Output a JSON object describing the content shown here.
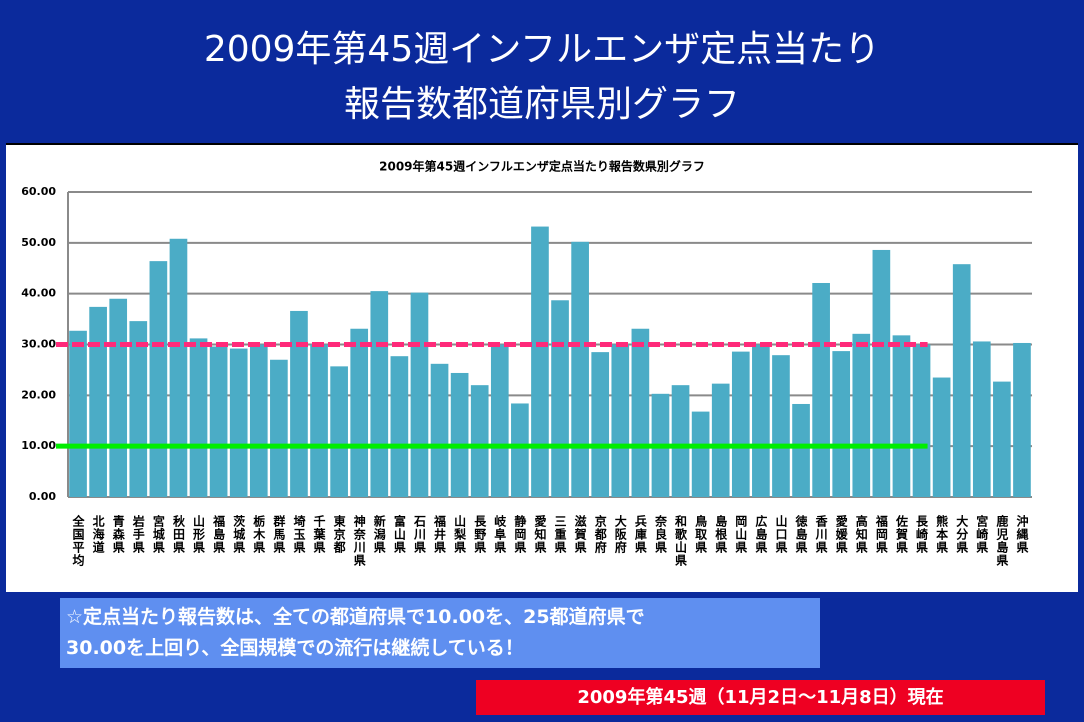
{
  "slide": {
    "title_lines": [
      "2009年第45週インフルエンザ定点当たり",
      "報告数都道府県別グラフ"
    ],
    "note_lines": [
      "☆定点当たり報告数は、全ての都道府県で10.00を、25都道府県で",
      "30.00を上回り、全国規模での流行は継続している！"
    ],
    "footer": "2009年第45週（11月2日～11月8日）現在"
  },
  "chart_data": {
    "type": "bar",
    "title": "2009年第45週インフルエンザ定点当たり報告数県別グラフ",
    "categories": [
      "全国平均",
      "北海道",
      "青森県",
      "岩手県",
      "宮城県",
      "秋田県",
      "山形県",
      "福島県",
      "茨城県",
      "栃木県",
      "群馬県",
      "埼玉県",
      "千葉県",
      "東京都",
      "神奈川県",
      "新潟県",
      "富山県",
      "石川県",
      "福井県",
      "山梨県",
      "長野県",
      "岐阜県",
      "静岡県",
      "愛知県",
      "三重県",
      "滋賀県",
      "京都府",
      "大阪府",
      "兵庫県",
      "奈良県",
      "和歌山県",
      "鳥取県",
      "島根県",
      "岡山県",
      "広島県",
      "山口県",
      "徳島県",
      "香川県",
      "愛媛県",
      "高知県",
      "福岡県",
      "佐賀県",
      "長崎県",
      "熊本県",
      "大分県",
      "宮崎県",
      "鹿児島県",
      "沖縄県"
    ],
    "values": [
      32.7,
      37.4,
      39.0,
      34.6,
      46.4,
      50.8,
      31.2,
      29.6,
      29.2,
      30.0,
      27.0,
      36.6,
      30.0,
      25.7,
      33.1,
      40.5,
      27.7,
      40.2,
      26.2,
      24.4,
      22.0,
      30.0,
      18.4,
      53.2,
      38.7,
      50.2,
      28.5,
      30.0,
      33.1,
      20.3,
      22.0,
      16.8,
      22.3,
      28.6,
      30.0,
      27.9,
      18.3,
      42.1,
      28.7,
      32.1,
      48.6,
      31.8,
      30.0,
      23.5,
      45.8,
      30.6,
      22.7,
      30.3
    ],
    "color": "#4bacc6",
    "ylim": [
      0,
      60
    ],
    "yticks": [
      {
        "value": 0,
        "label": "0.00"
      },
      {
        "value": 10,
        "label": "10.00"
      },
      {
        "value": 20,
        "label": "20.00"
      },
      {
        "value": 30,
        "label": "30.00"
      },
      {
        "value": 40,
        "label": "40.00"
      },
      {
        "value": 50,
        "label": "50.00"
      },
      {
        "value": 60,
        "label": "60.00"
      }
    ],
    "grid": true,
    "reference_lines": [
      {
        "value": 30,
        "color": "#ff2a7a",
        "dashed": true
      },
      {
        "value": 10,
        "color": "#00ee00",
        "dashed": false
      }
    ]
  }
}
